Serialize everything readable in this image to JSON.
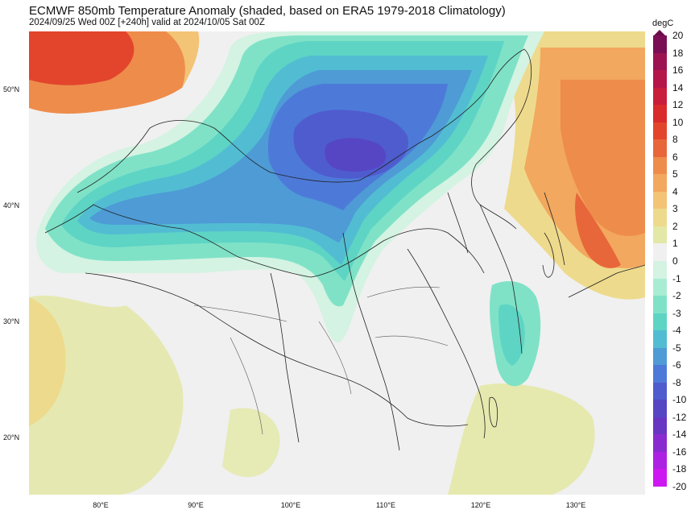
{
  "title": "ECMWF 850mb Temperature Anomaly (shaded, based on ERA5 1979-2018 Climatology)",
  "subtitle": "2024/09/25 Wed 00Z [+240h] valid at 2024/10/05 Sat 00Z",
  "colorbar": {
    "unit": "degC",
    "levels": [
      "20",
      "18",
      "16",
      "14",
      "12",
      "10",
      "8",
      "6",
      "5",
      "4",
      "3",
      "2",
      "1",
      "0",
      "-1",
      "-2",
      "-3",
      "-4",
      "-5",
      "-6",
      "-8",
      "-10",
      "-12",
      "-14",
      "-16",
      "-18",
      "-20"
    ],
    "colors": [
      "#7a0f55",
      "#9c1352",
      "#b5164a",
      "#c91d3c",
      "#d92b2b",
      "#e2452c",
      "#e8673a",
      "#ee8c4c",
      "#f2a85e",
      "#f3c376",
      "#eeda8c",
      "#e3e8a6",
      "#f0f0f0",
      "#d4f3e2",
      "#a9ecd4",
      "#7fe2c7",
      "#5ed4c4",
      "#52bdd2",
      "#4e9bd6",
      "#4d7ad8",
      "#4f5cce",
      "#5646c4",
      "#6936c4",
      "#8a2bd0",
      "#ad21e3",
      "#ce18f1"
    ]
  },
  "latitude_labels": [
    "50°N",
    "40°N",
    "30°N",
    "20°N"
  ],
  "longitude_labels": [
    "80°E",
    "90°E",
    "100°E",
    "110°E",
    "120°E",
    "130°E"
  ]
}
